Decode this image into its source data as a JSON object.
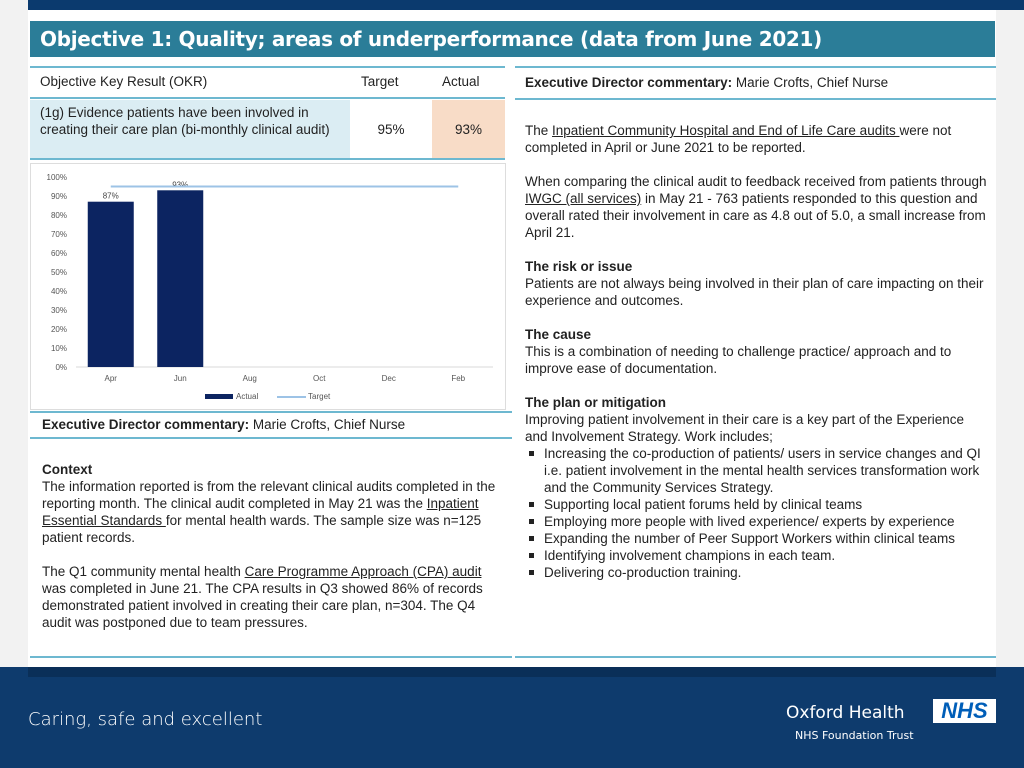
{
  "title": "Objective 1: Quality; areas of underperformance (data from June 2021)",
  "table": {
    "headers": [
      "Objective Key Result (OKR)",
      "Target",
      "Actual"
    ],
    "row": {
      "okr": "(1g) Evidence patients have been involved in creating their care plan (bi-monthly clinical audit)",
      "target": "95%",
      "actual": "93%"
    }
  },
  "left_commentary": {
    "label": "Executive Director commentary:",
    "name": " Marie Crofts, Chief Nurse",
    "context_heading": "Context",
    "p1a": "The information reported is from the relevant clinical audits completed in the reporting month. The clinical audit completed in May 21 was the ",
    "p1link": "Inpatient Essential Standards ",
    "p1b": "for mental health wards. The sample size was n=125 patient records.",
    "p2a": "The Q1 community mental health ",
    "p2link": "Care Programme Approach (CPA) audit ",
    "p2b": "was completed in June 21. The CPA results in Q3 showed 86% of records demonstrated patient involved in creating their care plan, n=304. The Q4 audit was postponed due to team pressures."
  },
  "right_commentary": {
    "label": "Executive Director commentary:",
    "name": " Marie Crofts, Chief Nurse",
    "p1a": "The ",
    "p1link": "Inpatient Community Hospital and End of Life Care audits ",
    "p1b": "were not completed in April or June 2021 to be reported.",
    "p2a": "When comparing the clinical audit to feedback received from patients through ",
    "p2link": "IWGC (all services)",
    "p2b": " in May 21 - 763 patients responded to this question and overall rated their involvement in care as 4.8 out of 5.0, a small increase from April 21.",
    "risk_heading": "The risk or issue",
    "risk": "Patients are not always being involved in their plan of care impacting on their experience and outcomes.",
    "cause_heading": "The cause",
    "cause": "This is a combination of needing to challenge practice/ approach and to improve ease of documentation.",
    "plan_heading": "The plan or mitigation",
    "plan": "Improving patient involvement in their care is a key part of the Experience and Involvement Strategy. Work includes;",
    "bullets": [
      "Increasing the co-production of patients/ users in service changes and QI i.e. patient involvement in the mental health services transformation work and the Community Services Strategy.",
      "Supporting local patient forums held by clinical teams",
      "Employing more people with lived experience/ experts by experience",
      "Expanding the number of Peer Support Workers within clinical teams",
      "Identifying involvement champions in each team.",
      "Delivering co-production training."
    ]
  },
  "footer": {
    "tagline": "Caring, safe and excellent",
    "org": "Oxford Health",
    "org_sub": "NHS Foundation Trust",
    "logo": "NHS"
  },
  "colors": {
    "actual": "#0c2461",
    "target": "#9dc3e6",
    "title_bg": "#2b7d98",
    "footer": "#0e3b6d"
  },
  "chart_data": {
    "type": "bar",
    "categories": [
      "Apr",
      "Jun",
      "Aug",
      "Oct",
      "Dec",
      "Feb"
    ],
    "series": [
      {
        "name": "Actual",
        "type": "bar",
        "values": [
          87,
          93,
          null,
          null,
          null,
          null
        ],
        "data_labels": [
          "87%",
          "93%"
        ]
      },
      {
        "name": "Target",
        "type": "line",
        "values": [
          95,
          95,
          95,
          95,
          95,
          95
        ]
      }
    ],
    "yticks": [
      "0%",
      "10%",
      "20%",
      "30%",
      "40%",
      "50%",
      "60%",
      "70%",
      "80%",
      "90%",
      "100%"
    ],
    "ylim": [
      0,
      100
    ],
    "legend": "bottom",
    "grid": false
  }
}
